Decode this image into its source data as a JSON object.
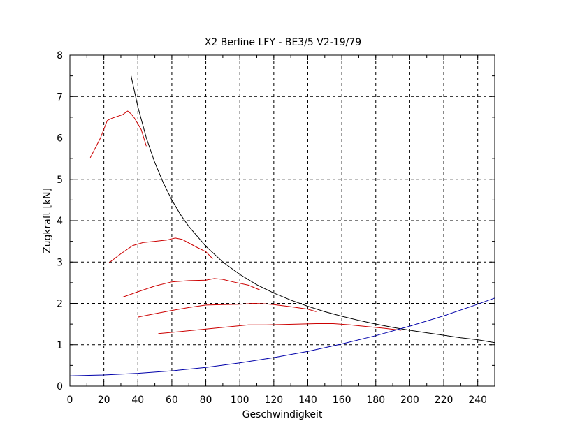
{
  "chart_data": {
    "type": "line",
    "title": "X2 Berline LFY - BE3/5 V2-19/79",
    "xlabel": "Geschwindigkeit",
    "ylabel": "Zugkraft [kN]",
    "xlim": [
      0,
      250
    ],
    "ylim": [
      0,
      8
    ],
    "xticks": [
      0,
      20,
      40,
      60,
      80,
      100,
      120,
      140,
      160,
      180,
      200,
      220,
      240
    ],
    "yticks": [
      0,
      1,
      2,
      3,
      4,
      5,
      6,
      7,
      8
    ],
    "xtick_labels": [
      "0",
      "20",
      "40",
      "60",
      "80",
      "100",
      "120",
      "140",
      "160",
      "180",
      "200",
      "220",
      "240"
    ],
    "ytick_labels": [
      "0",
      "1",
      "2",
      "3",
      "4",
      "5",
      "6",
      "7",
      "8"
    ],
    "grid": true,
    "series": [
      {
        "color": "#cc0000",
        "points": [
          [
            12,
            5.52
          ],
          [
            18,
            6.0
          ],
          [
            22,
            6.42
          ],
          [
            25,
            6.48
          ],
          [
            28,
            6.52
          ],
          [
            31,
            6.56
          ],
          [
            34,
            6.65
          ],
          [
            36,
            6.58
          ],
          [
            38,
            6.48
          ],
          [
            42,
            6.2
          ],
          [
            45,
            5.8
          ]
        ]
      },
      {
        "color": "#cc0000",
        "points": [
          [
            23,
            2.98
          ],
          [
            30,
            3.2
          ],
          [
            37,
            3.4
          ],
          [
            43,
            3.47
          ],
          [
            50,
            3.5
          ],
          [
            57,
            3.53
          ],
          [
            62,
            3.58
          ],
          [
            66,
            3.55
          ],
          [
            70,
            3.46
          ],
          [
            75,
            3.35
          ],
          [
            80,
            3.25
          ],
          [
            84,
            3.08
          ]
        ]
      },
      {
        "color": "#cc0000",
        "points": [
          [
            31,
            2.15
          ],
          [
            40,
            2.28
          ],
          [
            50,
            2.42
          ],
          [
            60,
            2.52
          ],
          [
            70,
            2.55
          ],
          [
            80,
            2.56
          ],
          [
            85,
            2.6
          ],
          [
            90,
            2.58
          ],
          [
            96,
            2.52
          ],
          [
            105,
            2.44
          ],
          [
            112,
            2.32
          ]
        ]
      },
      {
        "color": "#cc0000",
        "points": [
          [
            40,
            1.67
          ],
          [
            50,
            1.75
          ],
          [
            60,
            1.83
          ],
          [
            70,
            1.9
          ],
          [
            80,
            1.96
          ],
          [
            90,
            1.97
          ],
          [
            100,
            1.98
          ],
          [
            108,
            2.0
          ],
          [
            115,
            1.99
          ],
          [
            120,
            1.97
          ],
          [
            130,
            1.92
          ],
          [
            140,
            1.86
          ],
          [
            145,
            1.8
          ]
        ]
      },
      {
        "color": "#cc0000",
        "points": [
          [
            52,
            1.27
          ],
          [
            60,
            1.3
          ],
          [
            70,
            1.34
          ],
          [
            80,
            1.38
          ],
          [
            90,
            1.42
          ],
          [
            100,
            1.46
          ],
          [
            105,
            1.48
          ],
          [
            115,
            1.48
          ],
          [
            125,
            1.49
          ],
          [
            135,
            1.5
          ],
          [
            145,
            1.51
          ],
          [
            155,
            1.51
          ],
          [
            165,
            1.48
          ],
          [
            175,
            1.44
          ],
          [
            185,
            1.4
          ],
          [
            195,
            1.35
          ]
        ]
      },
      {
        "color": "#000000",
        "points": [
          [
            36,
            7.5
          ],
          [
            40,
            6.75
          ],
          [
            45,
            6.0
          ],
          [
            50,
            5.4
          ],
          [
            55,
            4.91
          ],
          [
            60,
            4.5
          ],
          [
            65,
            4.15
          ],
          [
            70,
            3.86
          ],
          [
            80,
            3.38
          ],
          [
            90,
            3.0
          ],
          [
            100,
            2.7
          ],
          [
            110,
            2.45
          ],
          [
            120,
            2.25
          ],
          [
            130,
            2.08
          ],
          [
            140,
            1.93
          ],
          [
            150,
            1.8
          ],
          [
            160,
            1.69
          ],
          [
            170,
            1.59
          ],
          [
            180,
            1.5
          ],
          [
            190,
            1.42
          ],
          [
            200,
            1.35
          ],
          [
            210,
            1.29
          ],
          [
            220,
            1.23
          ],
          [
            230,
            1.17
          ],
          [
            240,
            1.12
          ],
          [
            250,
            1.05
          ]
        ]
      },
      {
        "color": "#0000aa",
        "points": [
          [
            0,
            0.25
          ],
          [
            20,
            0.27
          ],
          [
            40,
            0.31
          ],
          [
            60,
            0.37
          ],
          [
            80,
            0.45
          ],
          [
            100,
            0.56
          ],
          [
            120,
            0.69
          ],
          [
            140,
            0.84
          ],
          [
            160,
            1.02
          ],
          [
            180,
            1.22
          ],
          [
            200,
            1.45
          ],
          [
            220,
            1.7
          ],
          [
            240,
            1.98
          ],
          [
            250,
            2.13
          ]
        ]
      }
    ]
  }
}
